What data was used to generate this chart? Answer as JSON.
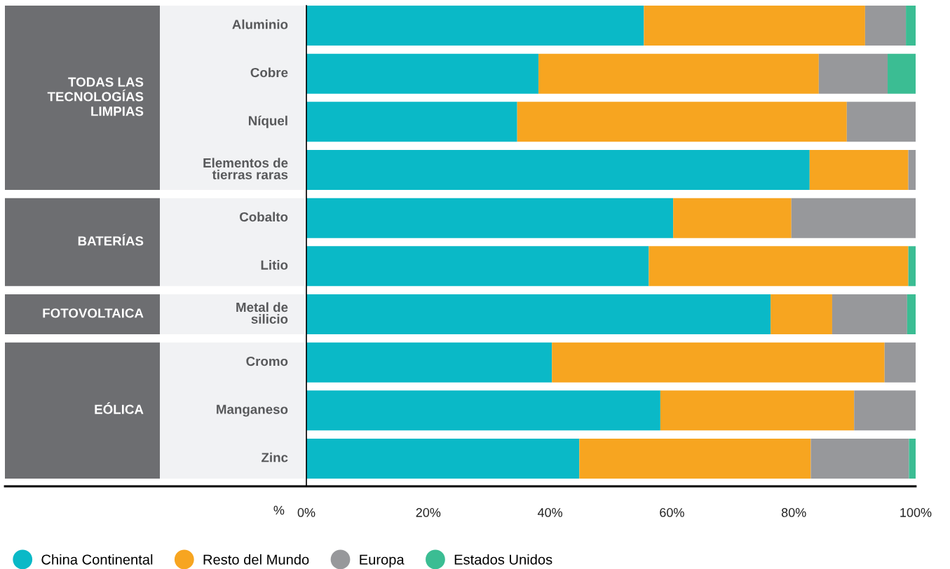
{
  "chart_data": {
    "type": "bar",
    "orientation": "horizontal",
    "stacked": true,
    "categories": [
      "Aluminio",
      "Cobre",
      "Níquel",
      "Elementos de\ntierras raras",
      "Cobalto",
      "Litio",
      "Metal de\nsilicio",
      "Cromo",
      "Manganeso",
      "Zinc"
    ],
    "series": [
      {
        "name": "China Continental",
        "color": "#0ab9c7",
        "values": [
          55.4,
          38.1,
          34.6,
          82.6,
          60.2,
          56.2,
          76.2,
          40.3,
          58.1,
          44.8
        ]
      },
      {
        "name": "Resto del Mundo",
        "color": "#f7a520",
        "values": [
          36.3,
          46.0,
          54.1,
          16.2,
          19.4,
          42.6,
          10.1,
          54.6,
          31.8,
          38.0
        ]
      },
      {
        "name": "Europa",
        "color": "#97989b",
        "values": [
          6.7,
          11.3,
          11.3,
          1.2,
          20.4,
          0,
          12.3,
          5.1,
          10.1,
          16.1
        ]
      },
      {
        "name": "Estados Unidos",
        "color": "#3bbd93",
        "values": [
          1.6,
          4.6,
          0,
          0,
          0,
          1.2,
          1.4,
          0,
          0,
          1.1
        ]
      }
    ],
    "xlabel": "%",
    "xlim": [
      0,
      100
    ],
    "xticks": [
      {
        "value": 0,
        "label": "0%"
      },
      {
        "value": 20,
        "label": "20%"
      },
      {
        "value": 40,
        "label": "40%"
      },
      {
        "value": 60,
        "label": "60%"
      },
      {
        "value": 80,
        "label": "80%"
      },
      {
        "value": 100,
        "label": "100%"
      }
    ],
    "annotations": [
      "TODAS LAS\nTECNOLOGÍAS\nLIMPIAS",
      "BATERÍAS",
      "FOTOVOLTAICA",
      "EÓLICA"
    ],
    "grid": false,
    "legend": "bottom left"
  }
}
